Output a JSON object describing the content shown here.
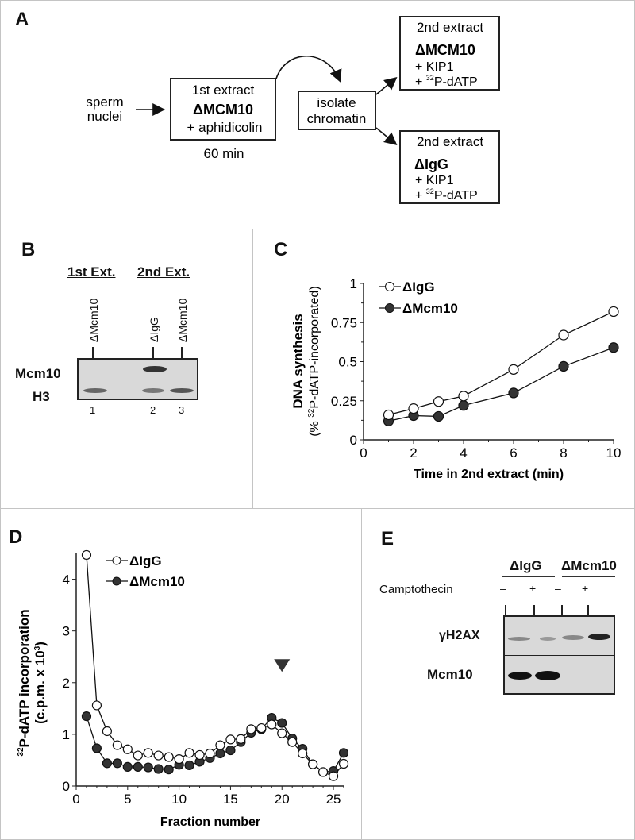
{
  "panels": {
    "a": "A",
    "b": "B",
    "c": "C",
    "d": "D",
    "e": "E"
  },
  "diagram": {
    "sperm_line1": "sperm",
    "sperm_line2": "nuclei",
    "first_box": {
      "title": "1st extract",
      "depletion": "ΔMCM10",
      "additive": "+ aphidicolin",
      "time": "60 min"
    },
    "isolate_line1": "isolate",
    "isolate_line2": "chromatin",
    "second_top": {
      "title": "2nd extract",
      "depletion": "ΔMCM10",
      "kip": "+ KIP1",
      "prefix": "+ ",
      "sup": "32",
      "rest": "P-dATP"
    },
    "second_bottom": {
      "title": "2nd extract",
      "depletion": "ΔIgG",
      "kip": "+ KIP1",
      "prefix": "+ ",
      "sup": "32",
      "rest": "P-dATP"
    }
  },
  "blot_b": {
    "header1": "1st Ext.",
    "header2": "2nd Ext.",
    "lanes": [
      "ΔMcm10",
      "ΔIgG",
      "ΔMcm10"
    ],
    "rows": [
      "Mcm10",
      "H3"
    ],
    "lane_numbers": [
      "1",
      "2",
      "3"
    ]
  },
  "blot_e": {
    "groups": [
      "ΔIgG",
      "ΔMcm10"
    ],
    "treatment_label": "Camptothecin",
    "treatments": [
      "–",
      "+",
      "–",
      "+"
    ],
    "rows": [
      "γH2AX",
      "Mcm10"
    ]
  },
  "chart_data": [
    {
      "type": "line",
      "title": "",
      "ylabel": "DNA synthesis",
      "ylabel2_pre": "(% ",
      "ylabel2_sup": "32",
      "ylabel2_post": "P-dATP-incorporated)",
      "xlabel": "Time in 2nd extract (min)",
      "xlim": [
        0,
        10
      ],
      "ylim": [
        0,
        1
      ],
      "xticks": [
        "0",
        "2",
        "4",
        "6",
        "8",
        "10"
      ],
      "yticks": [
        "0",
        "0.25",
        "0.5",
        "0.75",
        "1"
      ],
      "legend_position": "top-left",
      "x": [
        1,
        2,
        3,
        4,
        6,
        8,
        10
      ],
      "series": [
        {
          "name": "ΔIgG",
          "marker": "open",
          "values": [
            0.16,
            0.2,
            0.245,
            0.28,
            0.45,
            0.67,
            0.82
          ]
        },
        {
          "name": "ΔMcm10",
          "marker": "filled",
          "values": [
            0.12,
            0.155,
            0.15,
            0.22,
            0.3,
            0.47,
            0.59
          ]
        }
      ]
    },
    {
      "type": "line",
      "title": "",
      "ylabel_sup": "32",
      "ylabel": "P-dATP incorporation",
      "ylabel2_pre": "(c.p.m. x 10",
      "ylabel2_sup": "3",
      "ylabel2_post": ")",
      "xlabel": "Fraction number",
      "xlim": [
        0,
        26
      ],
      "ylim": [
        0,
        4.5
      ],
      "xticks": [
        "0",
        "5",
        "10",
        "15",
        "20",
        "25"
      ],
      "yticks": [
        "0",
        "1",
        "2",
        "3",
        "4"
      ],
      "legend_position": "top-left",
      "annotation": {
        "type": "arrowhead",
        "x": 20,
        "y": 2.3
      },
      "x": [
        1,
        2,
        3,
        4,
        5,
        6,
        7,
        8,
        9,
        10,
        11,
        12,
        13,
        14,
        15,
        16,
        17,
        18,
        19,
        20,
        21,
        22,
        23,
        24,
        25,
        26
      ],
      "series": [
        {
          "name": "ΔIgG",
          "marker": "open",
          "values": [
            4.47,
            1.56,
            1.06,
            0.79,
            0.71,
            0.59,
            0.64,
            0.59,
            0.56,
            0.52,
            0.64,
            0.6,
            0.63,
            0.79,
            0.9,
            0.91,
            1.1,
            1.12,
            1.19,
            1.02,
            0.85,
            0.63,
            0.42,
            0.27,
            0.19,
            0.43
          ]
        },
        {
          "name": "ΔMcm10",
          "marker": "filled",
          "values": [
            1.35,
            0.73,
            0.44,
            0.44,
            0.37,
            0.37,
            0.36,
            0.33,
            0.32,
            0.41,
            0.4,
            0.47,
            0.54,
            0.63,
            0.69,
            0.85,
            1.03,
            1.1,
            1.32,
            1.22,
            0.92,
            0.72,
            0.42,
            0.27,
            0.29,
            0.64
          ]
        }
      ]
    }
  ]
}
